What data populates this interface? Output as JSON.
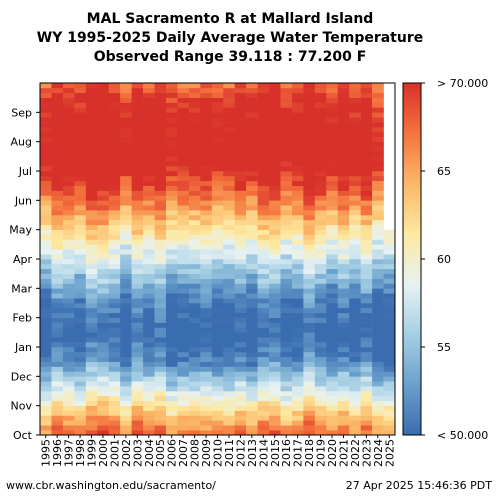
{
  "title_lines": [
    "MAL Sacramento R at Mallard Island",
    "WY 1995-2025 Daily Average Water Temperature",
    "Observed Range 39.118 : 77.200 F"
  ],
  "footer": {
    "url": "www.cbr.washington.edu/sacramento/",
    "timestamp": "27 Apr 2025 15:46:36 PDT"
  },
  "colorbar": {
    "tick_labels": [
      "< 50.000",
      "55",
      "60",
      "65",
      "> 70.000"
    ],
    "tick_values": [
      50,
      55,
      60,
      65,
      70
    ],
    "min": 50,
    "max": 70,
    "colors": [
      "#3a6db0",
      "#6aa0cc",
      "#a6cfe4",
      "#e7f2f3",
      "#fde9a0",
      "#fbb868",
      "#f4733e",
      "#d8312a"
    ]
  },
  "chart_data": {
    "type": "heatmap",
    "x_categories": [
      "1995",
      "1996",
      "1997",
      "1998",
      "1999",
      "2000",
      "2001",
      "2002",
      "2003",
      "2004",
      "2005",
      "2006",
      "2007",
      "2008",
      "2009",
      "2010",
      "2011",
      "2012",
      "2013",
      "2014",
      "2015",
      "2016",
      "2017",
      "2018",
      "2019",
      "2020",
      "2021",
      "2022",
      "2023",
      "2024",
      "2025"
    ],
    "y_categories": [
      "Oct",
      "Nov",
      "Dec",
      "Jan",
      "Feb",
      "Mar",
      "Apr",
      "May",
      "Jun",
      "Jul",
      "Aug",
      "Sep"
    ],
    "xlabel": "",
    "ylabel": "",
    "value_range": [
      39.118,
      77.2
    ],
    "monthly_typical_temperature": [
      {
        "month": "Oct",
        "value": 64.5
      },
      {
        "month": "Nov",
        "value": 58.0
      },
      {
        "month": "Dec",
        "value": 51.5
      },
      {
        "month": "Jan",
        "value": 49.0
      },
      {
        "month": "Feb",
        "value": 51.0
      },
      {
        "month": "Mar",
        "value": 55.0
      },
      {
        "month": "Apr",
        "value": 59.5
      },
      {
        "month": "May",
        "value": 64.5
      },
      {
        "month": "Jun",
        "value": 69.0
      },
      {
        "month": "Jul",
        "value": 72.5
      },
      {
        "month": "Aug",
        "value": 72.0
      },
      {
        "month": "Sep",
        "value": 70.0
      }
    ],
    "data_end_year": "2025",
    "data_end_month": "Apr"
  }
}
